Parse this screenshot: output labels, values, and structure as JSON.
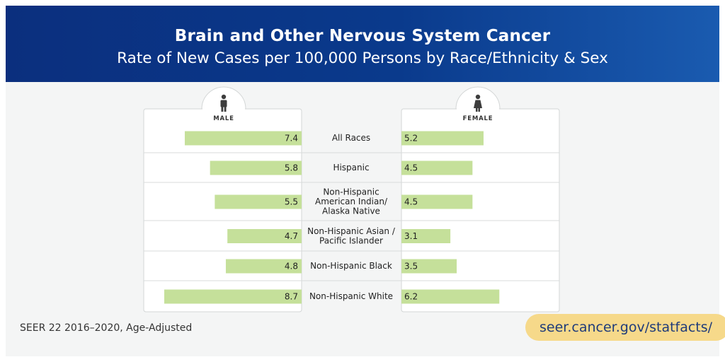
{
  "header": {
    "title": "Brain and Other Nervous System Cancer",
    "subtitle": "Rate of New Cases per 100,000 Persons by Race/Ethnicity & Sex"
  },
  "footer": {
    "source": "SEER 22 2016–2020, Age-Adjusted",
    "url": "seer.cancer.gov/statfacts/"
  },
  "panels": {
    "male_label": "MALE",
    "female_label": "FEMALE",
    "male_icon": "male-person-icon",
    "female_icon": "female-person-icon"
  },
  "colors": {
    "bar": "#c5e09a",
    "header_blue": "#0b2f7e",
    "pill": "#f6d98a"
  },
  "chart_data": {
    "type": "bar",
    "title": "Brain and Other Nervous System Cancer",
    "subtitle": "Rate of New Cases per 100,000 Persons by Race/Ethnicity & Sex",
    "categories": [
      "All Races",
      "Hispanic",
      "Non-Hispanic\nAmerican Indian/\nAlaska Native",
      "Non-Hispanic Asian /\nPacific Islander",
      "Non-Hispanic Black",
      "Non-Hispanic White"
    ],
    "series": [
      {
        "name": "MALE",
        "values": [
          "7.4",
          "5.8",
          "5.5",
          "4.7",
          "4.8",
          "8.7"
        ]
      },
      {
        "name": "FEMALE",
        "values": [
          "5.2",
          "4.5",
          "4.5",
          "3.1",
          "3.5",
          "6.2"
        ]
      }
    ]
  }
}
